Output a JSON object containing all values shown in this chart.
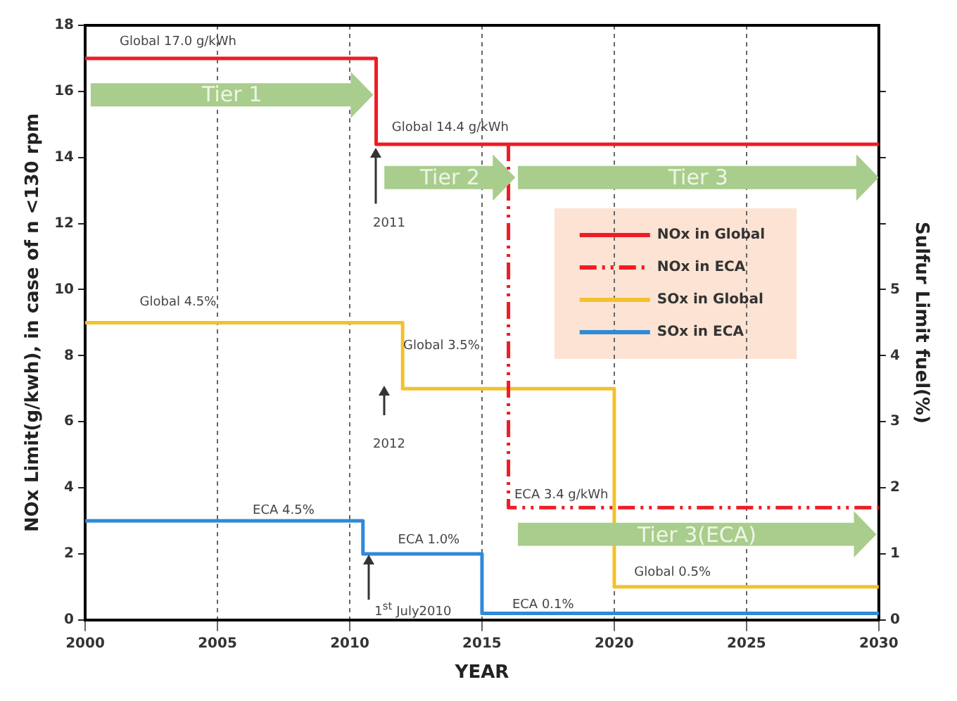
{
  "chart_data": {
    "type": "step",
    "xlabel": "YEAR",
    "ylabel": "NOx Limit(g/kwh), in case of n <130 rpm",
    "y2label": "Sulfur Limit fuel(%)",
    "xlim": [
      2000,
      2030
    ],
    "xticks": [
      2000,
      2005,
      2010,
      2015,
      2020,
      2025,
      2030
    ],
    "ylim": [
      0,
      18
    ],
    "yticks": [
      0,
      2,
      4,
      6,
      8,
      10,
      12,
      14,
      16,
      18
    ],
    "y2lim": [
      0,
      9
    ],
    "y2ticks": [
      0,
      1,
      2,
      3,
      4,
      5,
      {
        "value": 6,
        "label": null
      },
      {
        "value": 7,
        "label": null
      },
      {
        "value": 8,
        "label": null
      }
    ],
    "grid": "x",
    "legend": "top right",
    "marker": "none",
    "series": [
      {
        "name": "NOx in Global",
        "color": "#ee1c25",
        "line_style": "solid",
        "x": [
          2000,
          2011,
          2030
        ],
        "values": [
          17.0,
          14.4,
          14.4
        ]
      },
      {
        "name": "NOx in ECA",
        "color": "#ee1c25",
        "line_style": "dashed",
        "x": [
          2016,
          2016,
          2030
        ],
        "values": [
          14.4,
          3.4,
          3.4
        ]
      },
      {
        "name": "SOx in Global",
        "color": "#f2c12e",
        "line_style": "solid",
        "axis": "y2",
        "x": [
          2000,
          2012,
          2020,
          2030
        ],
        "values": [
          4.5,
          3.5,
          0.5,
          0.5
        ]
      },
      {
        "name": "SOx in ECA",
        "color": "#2f8ad8",
        "line_style": "solid",
        "axis": "y2",
        "x": [
          2000,
          2010.5,
          2015,
          2030
        ],
        "values": [
          1.5,
          1.0,
          0.1,
          0.1
        ]
      }
    ],
    "annotations": [
      "Global 17.0 g/kWh",
      "Global 14.4 g/kWh",
      "2011",
      "Global 4.5%",
      "Global 3.5%",
      "2012",
      "ECA 4.5%",
      "ECA 1.0%",
      "1$^{st}$ July2010",
      "ECA 0.1%",
      "ECA 3.4 g/kWh",
      "Global 0.5%",
      "Tier 1",
      "Tier 2",
      "Tier 3",
      "Tier 3(ECA)"
    ]
  }
}
